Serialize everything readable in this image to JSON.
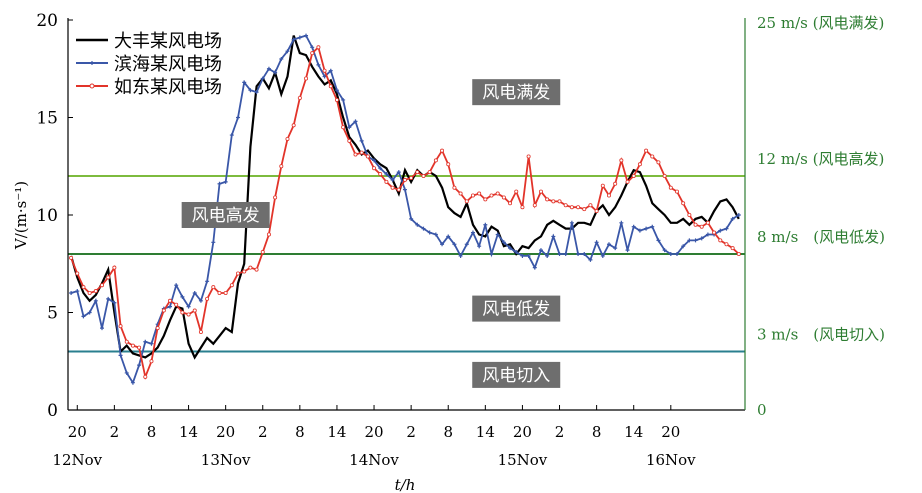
{
  "chart_data": {
    "type": "line",
    "ylabel": "V/(m·s⁻¹)",
    "xlabel": "t/h",
    "ylim": [
      0,
      20
    ],
    "yticks": [
      0,
      5,
      10,
      15,
      20
    ],
    "x_unit": "hours since first tick label",
    "xlim": [
      -1.5,
      108
    ],
    "x_tick_labels": [
      {
        "x": 0,
        "label": "20"
      },
      {
        "x": 6,
        "label": "2"
      },
      {
        "x": 12,
        "label": "8"
      },
      {
        "x": 18,
        "label": "14"
      },
      {
        "x": 24,
        "label": "20"
      },
      {
        "x": 30,
        "label": "2"
      },
      {
        "x": 36,
        "label": "8"
      },
      {
        "x": 42,
        "label": "14"
      },
      {
        "x": 48,
        "label": "20"
      },
      {
        "x": 54,
        "label": "2"
      },
      {
        "x": 60,
        "label": "8"
      },
      {
        "x": 66,
        "label": "14"
      },
      {
        "x": 72,
        "label": "20"
      },
      {
        "x": 78,
        "label": "2"
      },
      {
        "x": 84,
        "label": "8"
      },
      {
        "x": 90,
        "label": "14"
      },
      {
        "x": 96,
        "label": "20"
      }
    ],
    "date_labels": [
      {
        "x": 0,
        "label": "12Nov"
      },
      {
        "x": 24,
        "label": "13Nov"
      },
      {
        "x": 48,
        "label": "14Nov"
      },
      {
        "x": 72,
        "label": "15Nov"
      },
      {
        "x": 96,
        "label": "16Nov"
      }
    ],
    "thresholds": [
      {
        "value": 12,
        "label": "12 m/s (风电高发)",
        "color": "#7dbb3e"
      },
      {
        "value": 8,
        "label": "8 m/s　(风电低发)",
        "color": "#2e7d32"
      },
      {
        "value": 3,
        "label": "3 m/s　(风电切入)",
        "color": "#2a7f8f"
      }
    ],
    "right_axis_labels": [
      {
        "value": 20,
        "label": "25 m/s (风电满发)"
      },
      {
        "value": 0,
        "label": "0"
      }
    ],
    "region_labels": [
      {
        "text": "风电满发",
        "x": 71,
        "y": 16.3
      },
      {
        "text": "风电高发",
        "x": 24,
        "y": 10.0
      },
      {
        "text": "风电低发",
        "x": 71,
        "y": 5.2
      },
      {
        "text": "风电切入",
        "x": 71,
        "y": 1.8
      }
    ],
    "legend_position": "top-left",
    "series": [
      {
        "name": "大丰某风电场",
        "color": "#000000",
        "marker": "none",
        "x": [
          -1,
          0,
          1,
          2,
          3,
          4,
          5,
          6,
          7,
          8,
          9,
          10,
          11,
          12,
          13,
          14,
          15,
          16,
          17,
          18,
          19,
          20,
          21,
          22,
          23,
          24,
          25,
          26,
          27,
          28,
          29,
          30,
          31,
          32,
          33,
          34,
          35,
          36,
          37,
          38,
          39,
          40,
          41,
          42,
          43,
          44,
          45,
          46,
          47,
          48,
          49,
          50,
          51,
          52,
          53,
          54,
          55,
          56,
          57,
          58,
          59,
          60,
          61,
          62,
          63,
          64,
          65,
          66,
          67,
          68,
          69,
          70,
          71,
          72,
          73,
          74,
          75,
          76,
          77,
          78,
          79,
          80,
          81,
          82,
          83,
          84,
          85,
          86,
          87,
          88,
          89,
          90,
          91,
          92,
          93,
          94,
          95,
          96,
          97,
          98,
          99,
          100,
          101,
          102,
          103,
          104,
          105,
          106,
          107
        ],
        "y": [
          7.9,
          6.8,
          6.0,
          5.6,
          5.9,
          6.5,
          7.2,
          5.0,
          3.0,
          3.3,
          2.9,
          2.8,
          2.7,
          2.9,
          3.2,
          3.8,
          4.6,
          5.3,
          5.2,
          3.4,
          2.7,
          3.2,
          3.7,
          3.4,
          3.8,
          4.2,
          4.0,
          6.5,
          7.5,
          13.5,
          16.6,
          17.0,
          16.5,
          17.3,
          16.2,
          17.1,
          19.2,
          18.3,
          18.2,
          17.6,
          17.1,
          16.7,
          16.9,
          16.2,
          15.0,
          14.0,
          13.6,
          13.1,
          13.3,
          12.9,
          12.6,
          12.4,
          11.8,
          11.1,
          12.3,
          11.7,
          12.3,
          12.0,
          12.2,
          12.0,
          11.4,
          10.4,
          10.1,
          9.9,
          10.6,
          9.5,
          9.0,
          8.9,
          9.4,
          9.2,
          8.4,
          8.5,
          8.0,
          8.4,
          8.3,
          8.7,
          8.9,
          9.5,
          9.7,
          9.5,
          9.3,
          9.3,
          9.6,
          9.6,
          9.5,
          10.2,
          10.5,
          10.0,
          10.4,
          11.0,
          11.7,
          12.3,
          12.2,
          11.5,
          10.6,
          10.3,
          10.0,
          9.6,
          9.6,
          9.8,
          9.5,
          9.8,
          9.9,
          9.6,
          10.2,
          10.7,
          10.8,
          10.4,
          9.8
        ]
      },
      {
        "name": "滨海某风电场",
        "color": "#3a57a8",
        "marker": "plus",
        "x": [
          -1,
          0,
          1,
          2,
          3,
          4,
          5,
          6,
          7,
          8,
          9,
          10,
          11,
          12,
          13,
          14,
          15,
          16,
          17,
          18,
          19,
          20,
          21,
          22,
          23,
          24,
          25,
          26,
          27,
          28,
          29,
          30,
          31,
          32,
          33,
          34,
          35,
          36,
          37,
          38,
          39,
          40,
          41,
          42,
          43,
          44,
          45,
          46,
          47,
          48,
          49,
          50,
          51,
          52,
          53,
          54,
          55,
          56,
          57,
          58,
          59,
          60,
          61,
          62,
          63,
          64,
          65,
          66,
          67,
          68,
          69,
          70,
          71,
          72,
          73,
          74,
          75,
          76,
          77,
          78,
          79,
          80,
          81,
          82,
          83,
          84,
          85,
          86,
          87,
          88,
          89,
          90,
          91,
          92,
          93,
          94,
          95,
          96,
          97,
          98,
          99,
          100,
          101,
          102,
          103,
          104,
          105,
          106,
          107
        ],
        "y": [
          6.0,
          6.1,
          4.8,
          5.0,
          5.6,
          4.2,
          5.7,
          5.5,
          2.8,
          1.9,
          1.4,
          2.3,
          3.5,
          3.4,
          4.4,
          5.2,
          5.3,
          6.4,
          5.8,
          5.3,
          6.0,
          5.6,
          6.6,
          8.6,
          11.6,
          11.7,
          14.1,
          15.0,
          16.8,
          16.4,
          16.3,
          17.0,
          17.5,
          17.3,
          18.0,
          18.4,
          19.0,
          19.1,
          19.2,
          18.6,
          17.7,
          17.1,
          17.4,
          16.4,
          15.9,
          14.5,
          14.8,
          13.8,
          13.0,
          12.8,
          12.4,
          12.1,
          11.8,
          12.2,
          11.3,
          9.8,
          9.5,
          9.3,
          9.1,
          9.0,
          8.5,
          8.9,
          8.5,
          7.9,
          8.5,
          9.1,
          8.4,
          9.5,
          8.0,
          9.0,
          8.6,
          8.3,
          8.1,
          7.9,
          7.9,
          7.3,
          8.2,
          7.9,
          8.9,
          8.0,
          8.0,
          9.6,
          8.0,
          8.0,
          7.7,
          8.6,
          7.9,
          8.5,
          8.3,
          9.6,
          8.2,
          9.4,
          9.2,
          9.3,
          9.4,
          8.7,
          8.2,
          8.0,
          8.0,
          8.4,
          8.7,
          8.7,
          8.8,
          9.0,
          9.0,
          9.2,
          9.3,
          9.8,
          10.0
        ]
      },
      {
        "name": "如东某风电场",
        "color": "#e2342a",
        "marker": "circle",
        "x": [
          -1,
          0,
          1,
          2,
          3,
          4,
          5,
          6,
          7,
          8,
          9,
          10,
          11,
          12,
          13,
          14,
          15,
          16,
          17,
          18,
          19,
          20,
          21,
          22,
          23,
          24,
          25,
          26,
          27,
          28,
          29,
          30,
          31,
          32,
          33,
          34,
          35,
          36,
          37,
          38,
          39,
          40,
          41,
          42,
          43,
          44,
          45,
          46,
          47,
          48,
          49,
          50,
          51,
          52,
          53,
          54,
          55,
          56,
          57,
          58,
          59,
          60,
          61,
          62,
          63,
          64,
          65,
          66,
          67,
          68,
          69,
          70,
          71,
          72,
          73,
          74,
          75,
          76,
          77,
          78,
          79,
          80,
          81,
          82,
          83,
          84,
          85,
          86,
          87,
          88,
          89,
          90,
          91,
          92,
          93,
          94,
          95,
          96,
          97,
          98,
          99,
          100,
          101,
          102,
          103,
          104,
          105,
          106,
          107
        ],
        "y": [
          7.8,
          7.0,
          6.3,
          6.0,
          6.1,
          6.4,
          6.8,
          7.3,
          4.3,
          3.5,
          3.3,
          3.2,
          1.7,
          2.5,
          4.2,
          5.1,
          5.6,
          5.4,
          5.0,
          4.9,
          5.1,
          4.0,
          5.7,
          6.3,
          6.0,
          6.0,
          6.4,
          7.0,
          7.1,
          7.3,
          7.2,
          8.1,
          9.0,
          10.9,
          12.5,
          13.9,
          14.6,
          16.0,
          17.0,
          18.3,
          18.6,
          17.4,
          16.6,
          15.9,
          14.5,
          13.8,
          13.1,
          13.2,
          13.0,
          12.4,
          12.1,
          11.7,
          11.4,
          11.3,
          11.8,
          11.9,
          12.2,
          12.0,
          12.2,
          12.8,
          13.3,
          12.6,
          11.4,
          11.1,
          10.7,
          11.0,
          11.1,
          10.8,
          11.0,
          11.1,
          10.9,
          10.6,
          11.2,
          10.4,
          13.0,
          10.5,
          11.2,
          10.8,
          10.7,
          10.7,
          10.5,
          10.4,
          10.4,
          10.3,
          10.5,
          10.2,
          11.5,
          11.0,
          11.6,
          12.8,
          11.7,
          12.0,
          12.6,
          13.3,
          13.0,
          12.7,
          12.0,
          11.4,
          11.2,
          10.6,
          10.0,
          9.5,
          9.4,
          9.6,
          9.1,
          8.7,
          8.5,
          8.3,
          8.0
        ]
      }
    ]
  }
}
